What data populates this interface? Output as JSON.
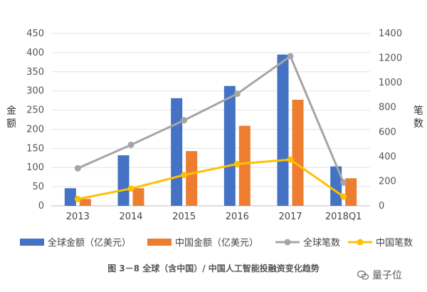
{
  "chart_data": {
    "type": "bar",
    "categories": [
      "2013",
      "2014",
      "2015",
      "2016",
      "2017",
      "2018Q1"
    ],
    "series": [
      {
        "name": "全球金额（亿美元）",
        "type": "bar",
        "axis": "left",
        "color": "#4472C4",
        "values": [
          46,
          132,
          281,
          313,
          395,
          103
        ]
      },
      {
        "name": "中国金额（亿美元）",
        "type": "bar",
        "axis": "left",
        "color": "#ED7D31",
        "values": [
          18,
          46,
          143,
          209,
          277,
          72
        ]
      },
      {
        "name": "全球笔数",
        "type": "line",
        "axis": "right",
        "color": "#A5A5A5",
        "values": [
          305,
          495,
          695,
          910,
          1215,
          190
        ]
      },
      {
        "name": "中国笔数",
        "type": "line",
        "axis": "right",
        "color": "#FFC000",
        "values": [
          55,
          140,
          250,
          340,
          375,
          75
        ]
      }
    ],
    "ylabel": "金额",
    "y2label": "笔数",
    "ylim": [
      0,
      450
    ],
    "y2lim": [
      0,
      1400
    ],
    "yticks": [
      "0",
      "50",
      "100",
      "150",
      "200",
      "250",
      "300",
      "350",
      "400",
      "450"
    ],
    "y2ticks": [
      "0",
      "200",
      "400",
      "600",
      "800",
      "1000",
      "1200",
      "1400"
    ],
    "grid": true,
    "legend": "bottom"
  },
  "caption": "图 3－8 全球（含中国）/ 中国人工智能投融资变化趋势",
  "watermark": "量子位"
}
